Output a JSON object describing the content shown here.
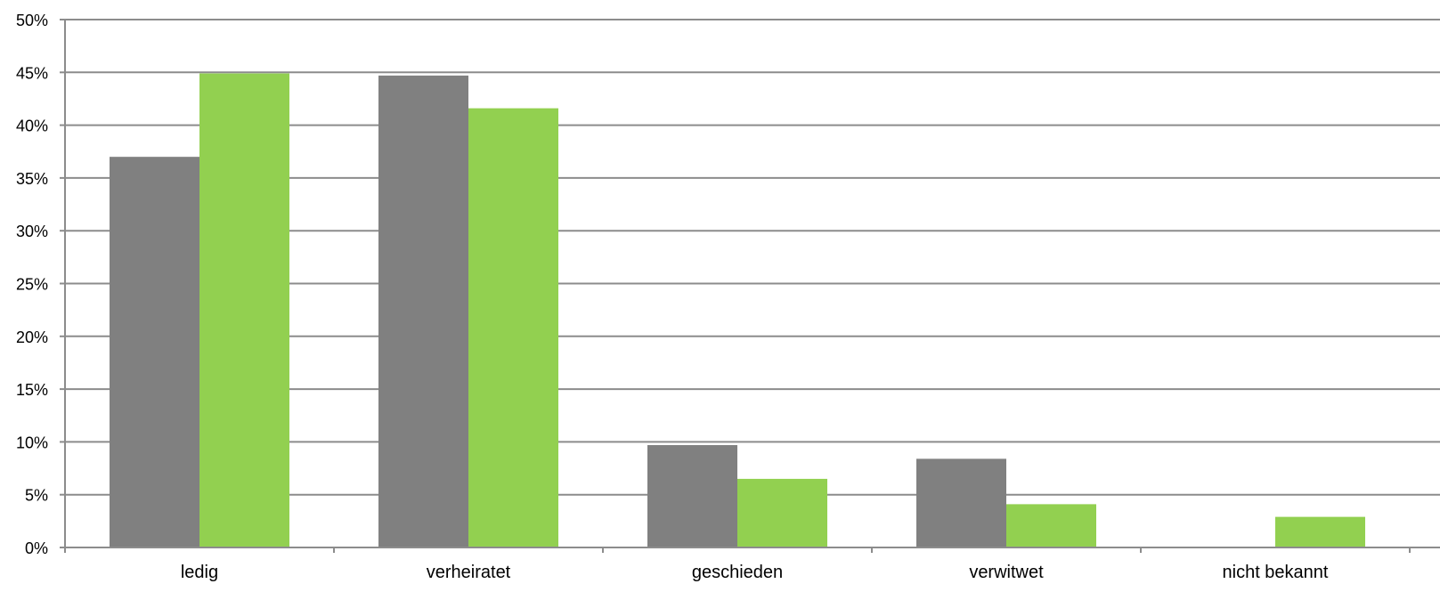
{
  "chart_data": {
    "type": "bar",
    "categories": [
      "ledig",
      "verheiratet",
      "geschieden",
      "verwitwet",
      "nicht bekannt"
    ],
    "series": [
      {
        "values": [
          37.0,
          44.7,
          9.7,
          8.4,
          0
        ],
        "color": "#808080"
      },
      {
        "values": [
          44.9,
          41.6,
          6.5,
          4.1,
          2.9
        ],
        "color": "#92D050"
      }
    ],
    "yticks": [
      "0%",
      "5%",
      "10%",
      "15%",
      "20%",
      "25%",
      "30%",
      "35%",
      "40%",
      "45%",
      "50%"
    ],
    "ylim": [
      0,
      50
    ],
    "grid": true,
    "legend": "none",
    "title": "",
    "xlabel": "",
    "ylabel": ""
  }
}
